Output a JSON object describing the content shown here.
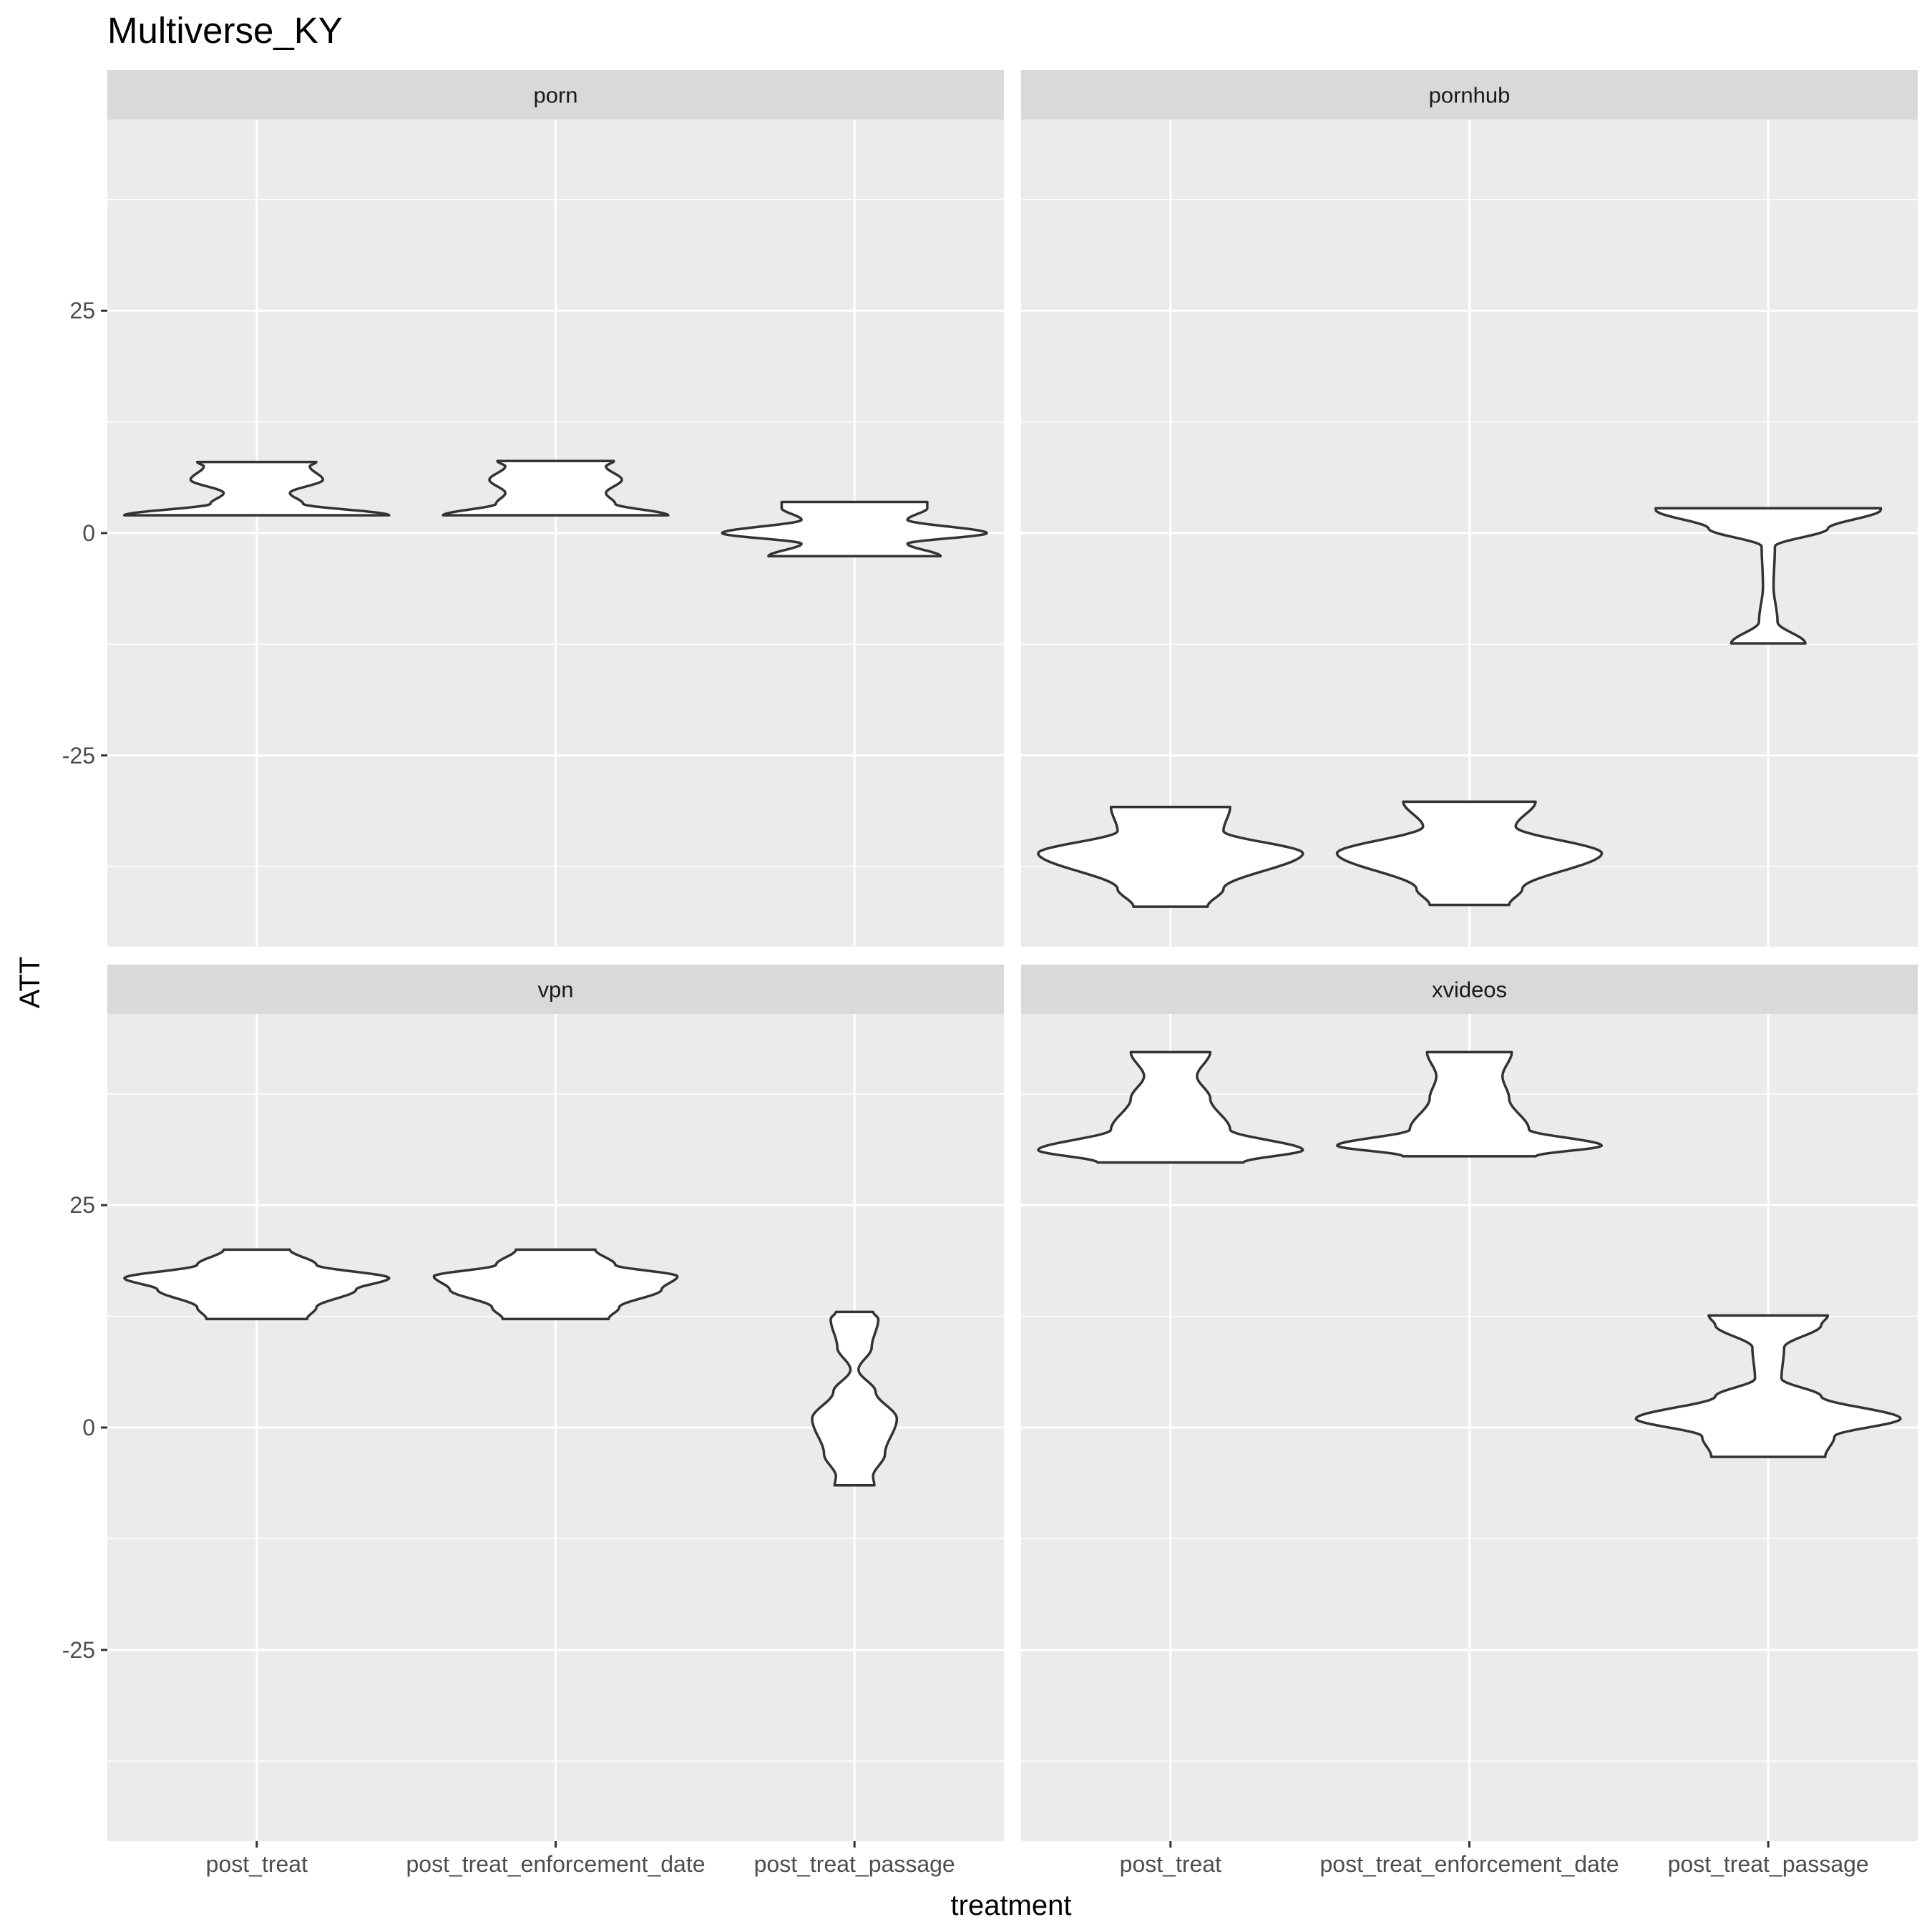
{
  "chart_data": {
    "type": "violin",
    "title": "Multiverse_KY",
    "xlabel": "treatment",
    "ylabel": "ATT",
    "categories": [
      "post_treat",
      "post_treat_enforcement_date",
      "post_treat_passage"
    ],
    "ylim": [
      -46.5,
      46.5
    ],
    "yticks": [
      -25,
      0,
      25
    ],
    "ytick_labels": [
      "-25",
      "0",
      "25"
    ],
    "grid": true,
    "facets": [
      {
        "name": "porn",
        "violins": [
          {
            "category": "post_treat",
            "profile": [
              [
                2.0,
                1.0
              ],
              [
                3.3,
                0.35
              ],
              [
                4.5,
                0.25
              ],
              [
                6.0,
                0.5
              ],
              [
                7.5,
                0.4
              ],
              [
                8.0,
                0.45
              ]
            ]
          },
          {
            "category": "post_treat_enforcement_date",
            "profile": [
              [
                2.0,
                0.85
              ],
              [
                3.3,
                0.45
              ],
              [
                4.5,
                0.38
              ],
              [
                6.0,
                0.5
              ],
              [
                7.5,
                0.38
              ],
              [
                8.1,
                0.44
              ]
            ]
          },
          {
            "category": "post_treat_passage",
            "profile": [
              [
                -2.6,
                0.65
              ],
              [
                -1.2,
                0.4
              ],
              [
                0.0,
                1.0
              ],
              [
                1.5,
                0.4
              ],
              [
                2.8,
                0.55
              ],
              [
                3.5,
                0.55
              ]
            ]
          }
        ]
      },
      {
        "name": "pornhub",
        "violins": [
          {
            "category": "post_treat",
            "profile": [
              [
                -42.0,
                0.28
              ],
              [
                -40.0,
                0.4
              ],
              [
                -36.0,
                1.0
              ],
              [
                -33.5,
                0.4
              ],
              [
                -30.8,
                0.45
              ]
            ]
          },
          {
            "category": "post_treat_enforcement_date",
            "profile": [
              [
                -41.8,
                0.3
              ],
              [
                -40.0,
                0.4
              ],
              [
                -36.0,
                1.0
              ],
              [
                -33.0,
                0.35
              ],
              [
                -30.2,
                0.5
              ]
            ]
          },
          {
            "category": "post_treat_passage",
            "profile": [
              [
                -12.4,
                0.28
              ],
              [
                -10.0,
                0.07
              ],
              [
                -6.0,
                0.04
              ],
              [
                -1.5,
                0.05
              ],
              [
                0.5,
                0.45
              ],
              [
                2.6,
                0.85
              ],
              [
                2.8,
                0.85
              ]
            ]
          }
        ]
      },
      {
        "name": "vpn",
        "violins": [
          {
            "category": "post_treat",
            "profile": [
              [
                12.2,
                0.38
              ],
              [
                13.5,
                0.45
              ],
              [
                15.5,
                0.75
              ],
              [
                16.8,
                1.0
              ],
              [
                18.3,
                0.45
              ],
              [
                20.0,
                0.25
              ]
            ]
          },
          {
            "category": "post_treat_enforcement_date",
            "profile": [
              [
                12.2,
                0.4
              ],
              [
                13.5,
                0.48
              ],
              [
                15.5,
                0.8
              ],
              [
                17.0,
                0.92
              ],
              [
                18.3,
                0.45
              ],
              [
                20.0,
                0.3
              ]
            ]
          },
          {
            "category": "post_treat_passage",
            "profile": [
              [
                -6.5,
                0.15
              ],
              [
                -5.5,
                0.14
              ],
              [
                -3.0,
                0.23
              ],
              [
                1.0,
                0.32
              ],
              [
                4.0,
                0.16
              ],
              [
                6.5,
                0.03
              ],
              [
                9.0,
                0.13
              ],
              [
                12.2,
                0.18
              ],
              [
                13.0,
                0.14
              ]
            ]
          }
        ]
      },
      {
        "name": "xvideos",
        "violins": [
          {
            "category": "post_treat",
            "profile": [
              [
                29.8,
                0.55
              ],
              [
                31.2,
                1.0
              ],
              [
                33.5,
                0.45
              ],
              [
                37.0,
                0.3
              ],
              [
                39.5,
                0.2
              ],
              [
                42.2,
                0.3
              ]
            ]
          },
          {
            "category": "post_treat_enforcement_date",
            "profile": [
              [
                30.5,
                0.5
              ],
              [
                31.7,
                1.0
              ],
              [
                33.5,
                0.45
              ],
              [
                37.0,
                0.3
              ],
              [
                39.5,
                0.25
              ],
              [
                42.2,
                0.32
              ]
            ]
          },
          {
            "category": "post_treat_passage",
            "profile": [
              [
                -3.3,
                0.43
              ],
              [
                -1.0,
                0.5
              ],
              [
                1.0,
                1.0
              ],
              [
                3.5,
                0.4
              ],
              [
                5.5,
                0.1
              ],
              [
                9.0,
                0.12
              ],
              [
                11.5,
                0.4
              ],
              [
                12.6,
                0.45
              ]
            ]
          }
        ]
      }
    ]
  }
}
